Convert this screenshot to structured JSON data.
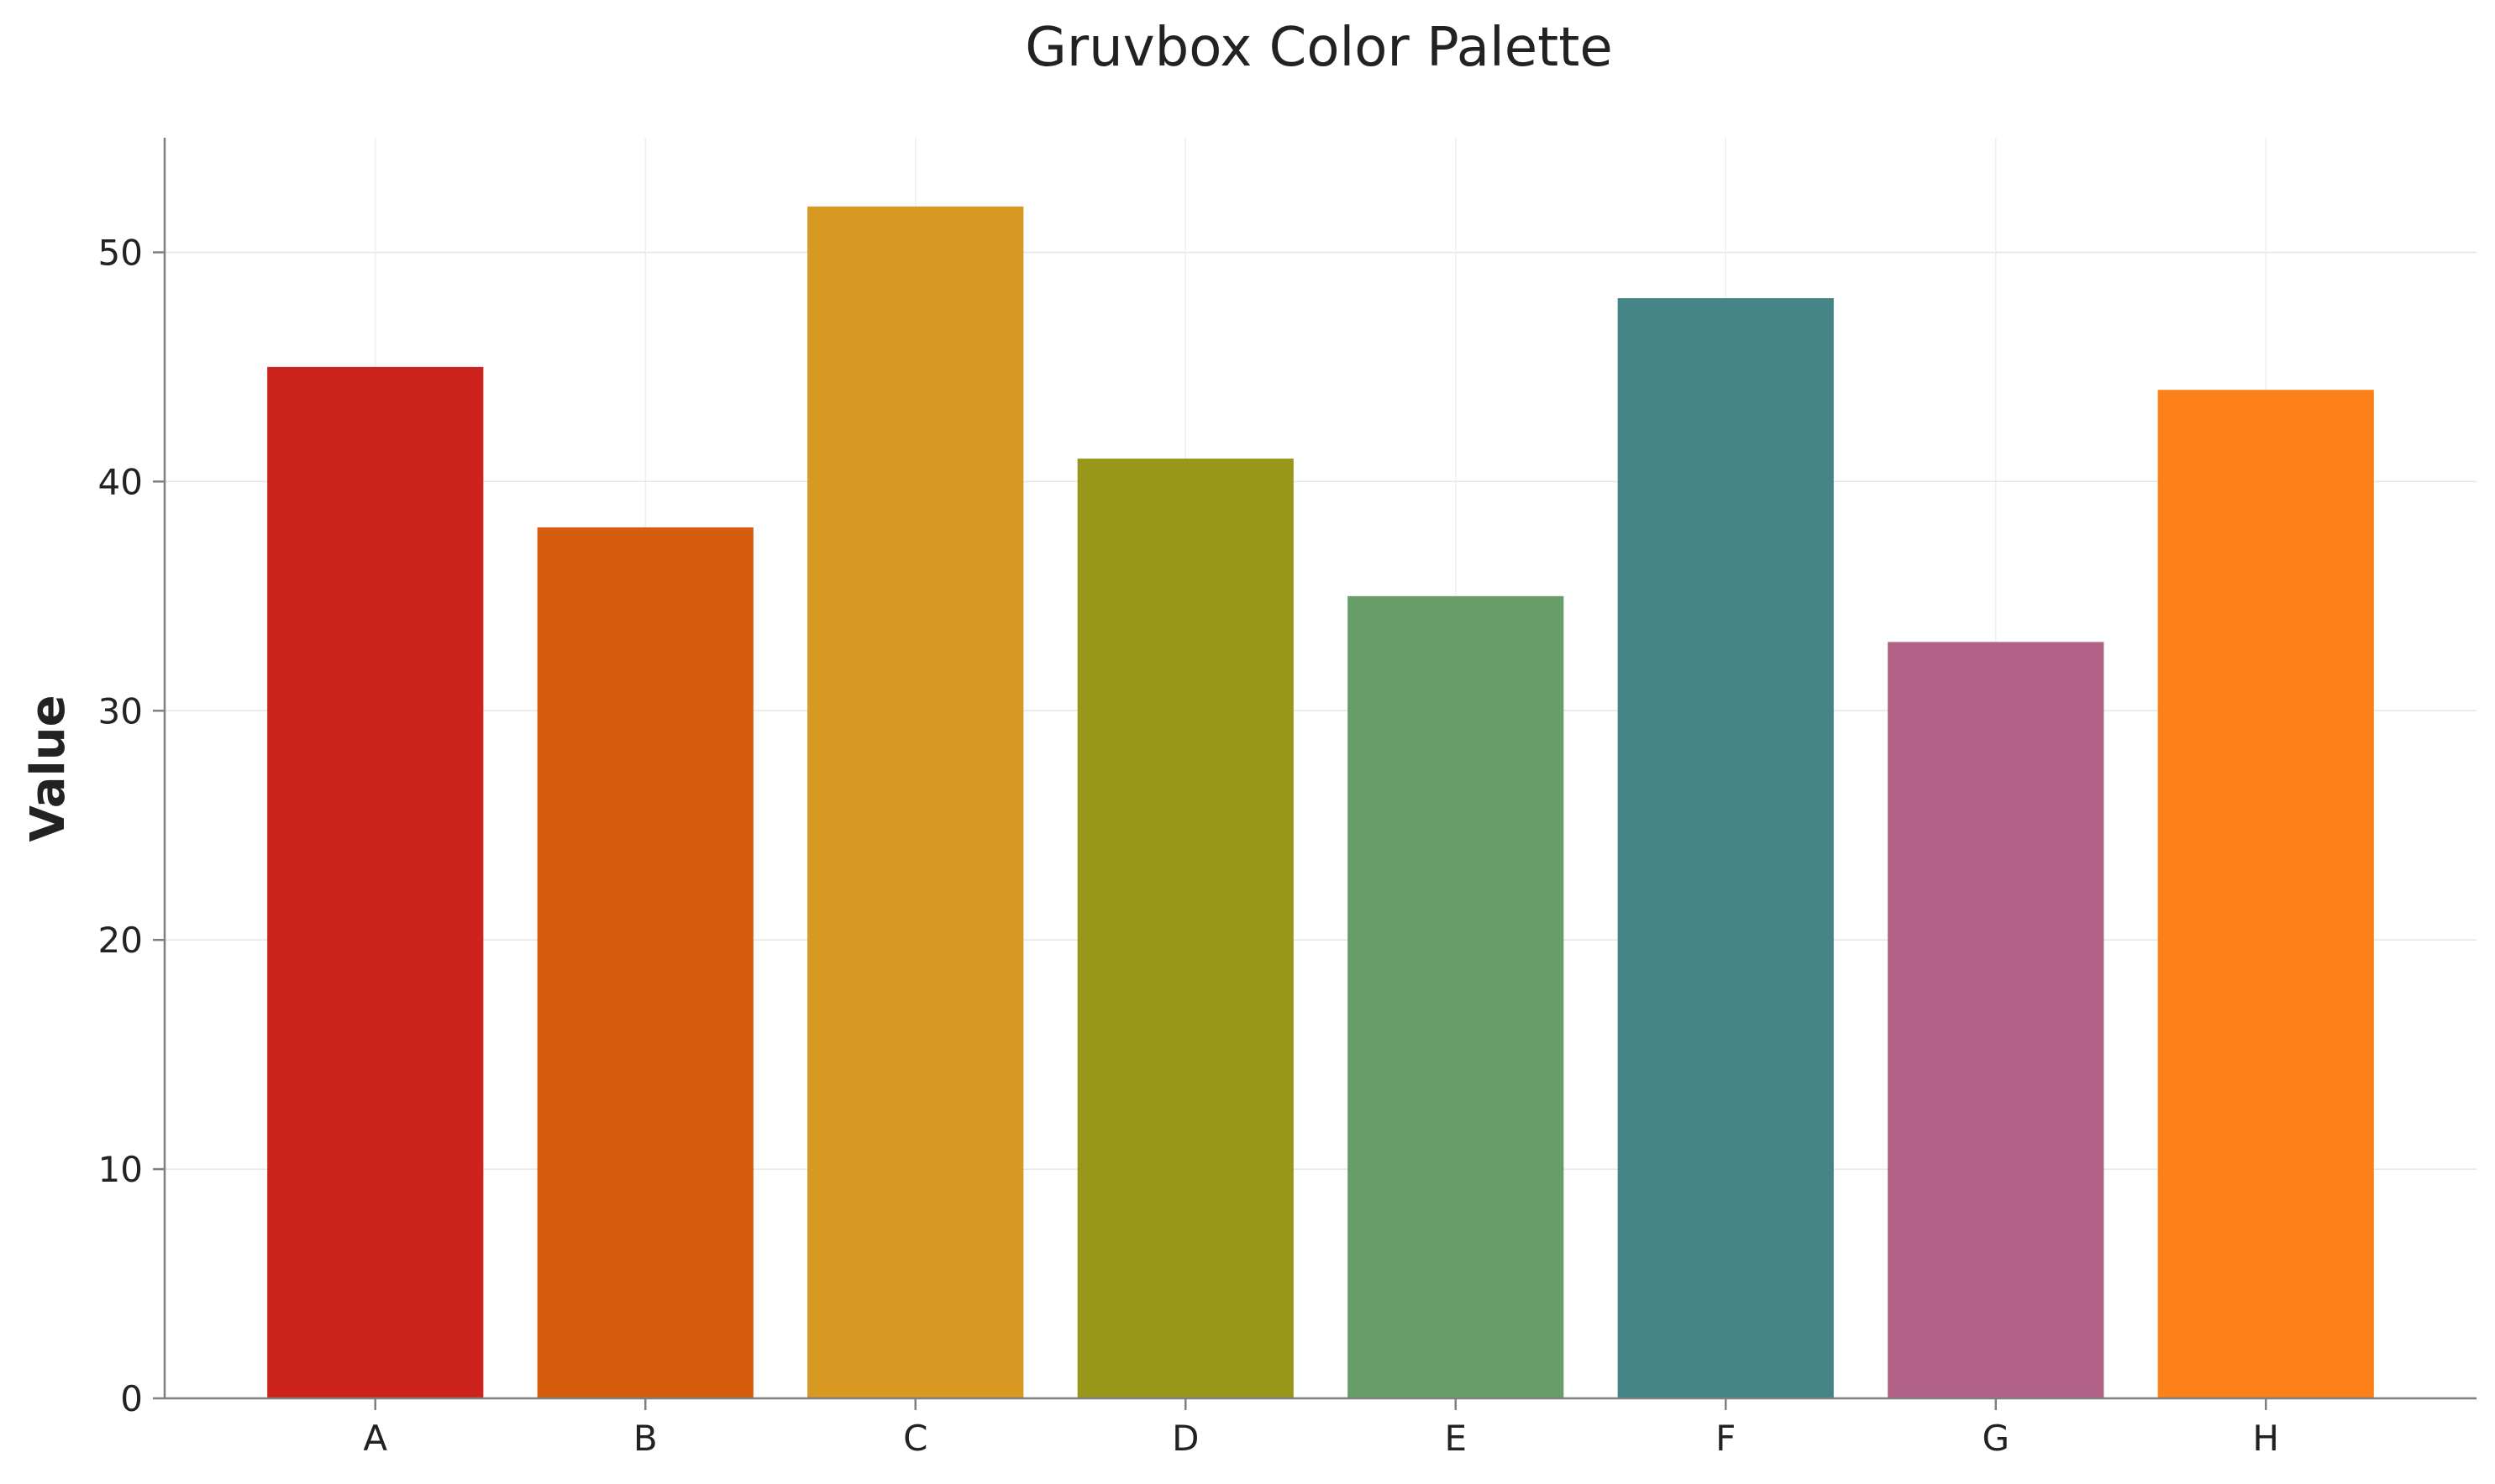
{
  "chart_data": {
    "type": "bar",
    "title": "Gruvbox Color Palette",
    "xlabel": "",
    "ylabel": "Value",
    "categories": [
      "A",
      "B",
      "C",
      "D",
      "E",
      "F",
      "G",
      "H"
    ],
    "values": [
      45,
      38,
      52,
      41,
      35,
      48,
      33,
      44
    ],
    "colors": [
      "#cc241d",
      "#d65d0e",
      "#d79921",
      "#98971a",
      "#689d6a",
      "#458588",
      "#b16286",
      "#fe8019"
    ],
    "ylim": [
      0,
      55
    ],
    "yticks": [
      0,
      10,
      20,
      30,
      40,
      50
    ],
    "grid": true,
    "legend": "none"
  }
}
